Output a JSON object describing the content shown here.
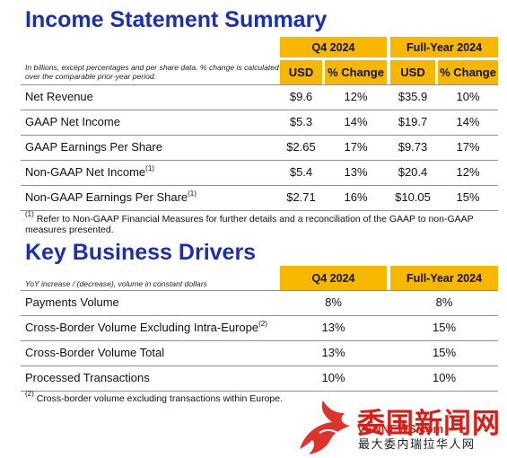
{
  "income": {
    "title": "Income Statement Summary",
    "note": "In billions, except percentages and per share data. % change is calculated over the comparable prior-year period.",
    "period_q4": "Q4 2024",
    "period_fy": "Full-Year 2024",
    "col_usd": "USD",
    "col_change": "% Change",
    "rows": [
      {
        "label": "Net Revenue",
        "sup": "",
        "q4_usd": "$9.6",
        "q4_chg": "12%",
        "fy_usd": "$35.9",
        "fy_chg": "10%"
      },
      {
        "label": "GAAP Net Income",
        "sup": "",
        "q4_usd": "$5.3",
        "q4_chg": "14%",
        "fy_usd": "$19.7",
        "fy_chg": "14%"
      },
      {
        "label": "GAAP Earnings Per Share",
        "sup": "",
        "q4_usd": "$2.65",
        "q4_chg": "17%",
        "fy_usd": "$9.73",
        "fy_chg": "17%"
      },
      {
        "label": "Non-GAAP Net Income",
        "sup": "(1)",
        "q4_usd": "$5.4",
        "q4_chg": "13%",
        "fy_usd": "$20.4",
        "fy_chg": "12%"
      },
      {
        "label": "Non-GAAP Earnings Per Share",
        "sup": "(1)",
        "q4_usd": "$2.71",
        "q4_chg": "16%",
        "fy_usd": "$10.05",
        "fy_chg": "15%"
      }
    ],
    "footnote_mark": "(1)",
    "footnote": "Refer to Non-GAAP Financial Measures for further details and a reconciliation of the GAAP to non-GAAP measures presented."
  },
  "drivers": {
    "title": "Key Business Drivers",
    "note": "YoY increase / (decrease), volume in constant dollars",
    "period_q4": "Q4 2024",
    "period_fy": "Full-Year 2024",
    "rows": [
      {
        "label": "Payments Volume",
        "sup": "",
        "q4": "8%",
        "fy": "8%"
      },
      {
        "label": "Cross-Border Volume Excluding Intra-Europe",
        "sup": "(2)",
        "q4": "13%",
        "fy": "15%"
      },
      {
        "label": "Cross-Border Volume Total",
        "sup": "",
        "q4": "13%",
        "fy": "15%"
      },
      {
        "label": "Processed Transactions",
        "sup": "",
        "q4": "10%",
        "fy": "10%"
      }
    ],
    "footnote_mark": "(2)",
    "footnote": "Cross-border volume excluding transactions within Europe."
  },
  "watermark": {
    "site_name": "委国新闻网",
    "url": "VENNEWS.com",
    "tagline": "最大委内瑞拉华人网"
  }
}
